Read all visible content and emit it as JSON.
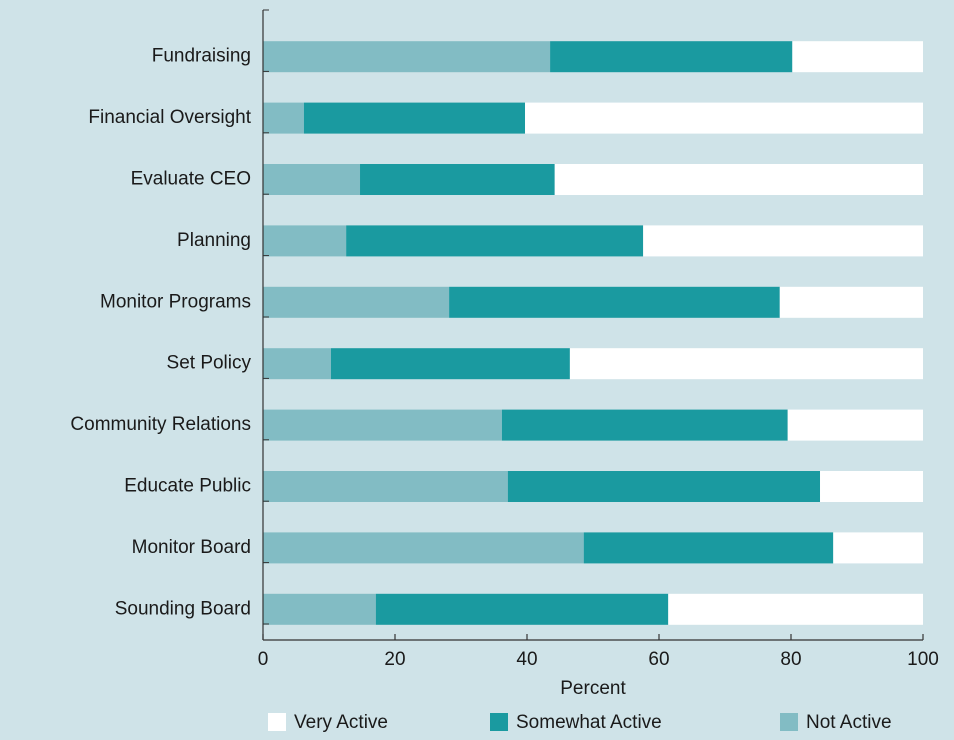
{
  "chart_data": {
    "type": "stacked-barh",
    "categories": [
      "Fundraising",
      "Financial Oversight",
      "Evaluate CEO",
      "Planning",
      "Monitor Programs",
      "Set Policy",
      "Community Relations",
      "Educate Public",
      "Monitor Board",
      "Sounding Board"
    ],
    "series": [
      {
        "name": "Very Active",
        "color": "#ffffff",
        "values": [
          19.8,
          60.3,
          55.8,
          42.4,
          21.7,
          53.5,
          20.5,
          15.6,
          13.6,
          38.6
        ]
      },
      {
        "name": "Somewhat Active",
        "color": "#1a9aa0",
        "values": [
          36.7,
          33.5,
          29.5,
          45.0,
          50.1,
          36.2,
          43.3,
          47.3,
          37.8,
          44.3
        ]
      },
      {
        "name": "Not Active",
        "color": "#82bcc4",
        "values": [
          43.5,
          6.2,
          14.7,
          12.6,
          28.2,
          10.3,
          36.2,
          37.1,
          48.6,
          17.1
        ]
      }
    ],
    "xlabel": "Percent",
    "xlim": [
      0,
      100
    ],
    "xticks": [
      0,
      20,
      40,
      60,
      80,
      100
    ],
    "legend": "bottom"
  }
}
